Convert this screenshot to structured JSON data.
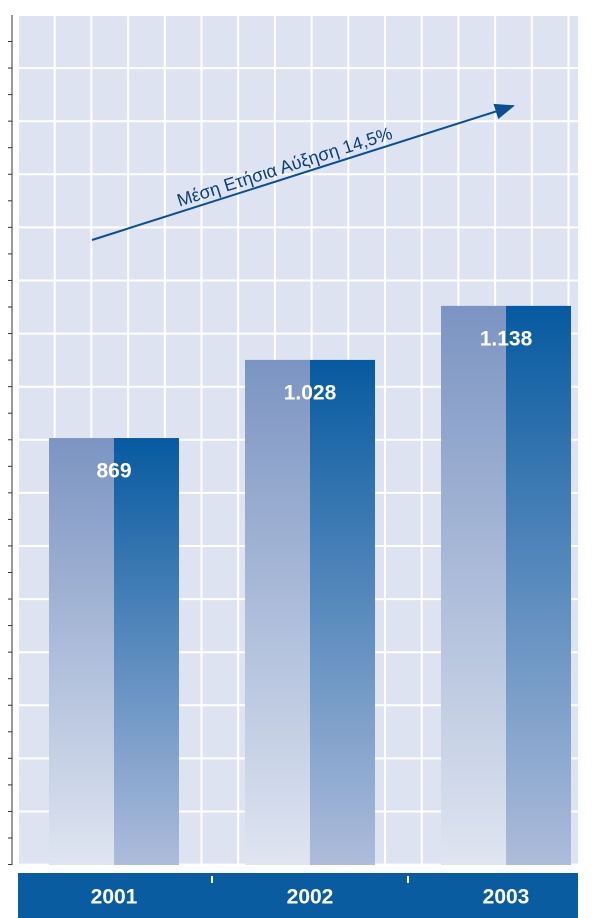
{
  "chart_data": {
    "type": "bar",
    "categories": [
      "2001",
      "2002",
      "2003"
    ],
    "values": [
      869,
      1028,
      1138
    ],
    "value_labels": [
      "869",
      "1.028",
      "1.138"
    ],
    "ylim": [
      0,
      1730
    ],
    "grid": true,
    "annotation": "Μέση Ετήσια Αύξηση 14,5%"
  }
}
